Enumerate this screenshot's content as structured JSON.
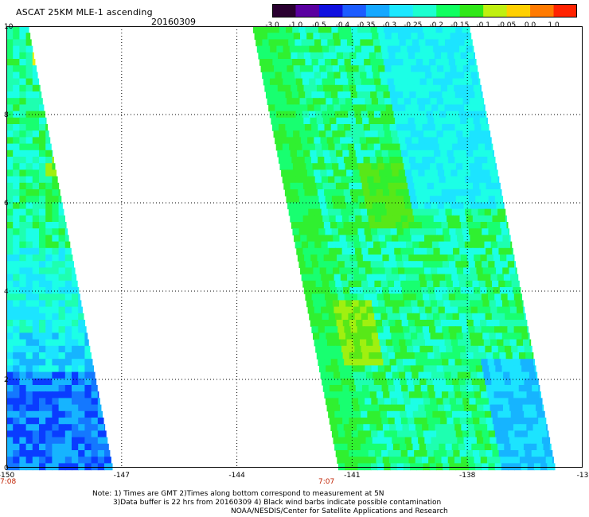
{
  "header": {
    "title": "ASCAT 25KM MLE-1 ascending",
    "date": "20160309"
  },
  "colorbar": {
    "labels": [
      "-3.0",
      "-1.0",
      "-0.5",
      "-0.4",
      "-0.35",
      "-0.3",
      "-0.25",
      "-0.2",
      "-0.15",
      "-0.1",
      "-0.05",
      "0.0",
      "1.0"
    ],
    "colors": [
      "#2a0030",
      "#5a00a0",
      "#1010e0",
      "#1c5cff",
      "#15a8ff",
      "#1ce8ff",
      "#1cffd0",
      "#10ff60",
      "#30e818",
      "#c0f010",
      "#ffd000",
      "#ff7a00",
      "#ff2200"
    ]
  },
  "axes": {
    "x_ticks": [
      "-150",
      "-147",
      "-144",
      "-141",
      "-138",
      "-13"
    ],
    "y_ticks": [
      "0",
      "2",
      "4",
      "6",
      "8",
      "10"
    ],
    "x_range": [
      -150,
      -135
    ],
    "y_range": [
      0,
      10
    ]
  },
  "times": {
    "left": "7:08",
    "right": "7:07"
  },
  "notes": {
    "line1": "Note: 1) Times are GMT 2)Times along bottom correspond to measurement at 5N",
    "line2": "3)Data buffer is 22 hrs from 20160309 4) Black wind barbs indicate possible contamination",
    "line3": "NOAA/NESDIS/Center for Satellite Applications and Research"
  }
}
